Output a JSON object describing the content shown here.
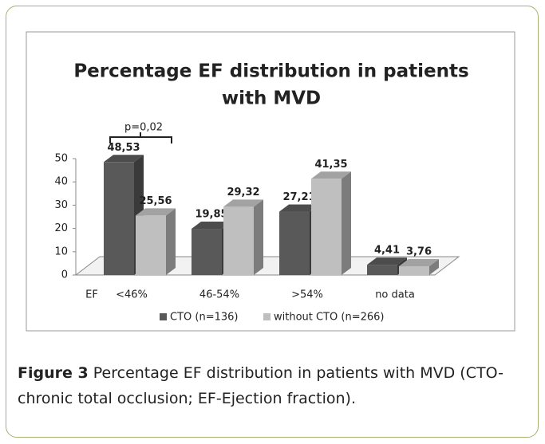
{
  "chart_data": {
    "type": "bar3d",
    "title": [
      "Percentage EF distribution in patients",
      "with MVD"
    ],
    "x_label": "EF",
    "annotation": "p=0,02",
    "categories": [
      "<46%",
      "46-54%",
      ">54%",
      "no data"
    ],
    "series": [
      {
        "name": "CTO (n=136)",
        "color": "#595959",
        "values": [
          48.53,
          19.85,
          27.21,
          4.41
        ],
        "value_labels": [
          "48,53",
          "19,85",
          "27,21",
          "4,41"
        ]
      },
      {
        "name": "without CTO (n=266)",
        "color": "#bfbfbf",
        "values": [
          25.56,
          29.32,
          41.35,
          3.76
        ],
        "value_labels": [
          "25,56",
          "29,32",
          "41,35",
          "3,76"
        ]
      }
    ],
    "ylim": [
      0,
      50
    ],
    "yticks": [
      0,
      10,
      20,
      30,
      40,
      50
    ],
    "legend": "bottom"
  },
  "caption": {
    "label": "Figure 3",
    "text": "Percentage EF distribution in patients with MVD (CTO-chronic total occlusion; EF-Ejection fraction)."
  }
}
